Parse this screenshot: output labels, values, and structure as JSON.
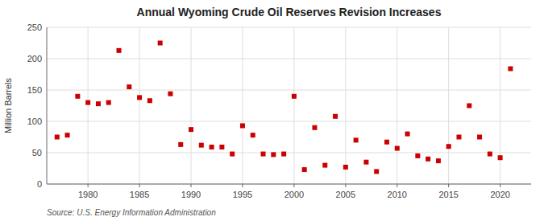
{
  "chart_data": {
    "type": "scatter",
    "title": "Annual Wyoming Crude Oil Reserves Revision Increases",
    "ylabel": "Million Barrels",
    "source": "Source: U.S. Energy Information Administration",
    "color": "#cc0000",
    "marker": "square",
    "grid": true,
    "x": [
      1977,
      1978,
      1979,
      1980,
      1981,
      1982,
      1983,
      1984,
      1985,
      1986,
      1987,
      1988,
      1989,
      1990,
      1991,
      1992,
      1993,
      1994,
      1995,
      1996,
      1997,
      1998,
      1999,
      2000,
      2001,
      2002,
      2003,
      2004,
      2005,
      2006,
      2007,
      2008,
      2009,
      2010,
      2011,
      2012,
      2013,
      2014,
      2015,
      2016,
      2017,
      2018,
      2019,
      2020,
      2021
    ],
    "values": [
      75,
      78,
      140,
      130,
      128,
      130,
      213,
      155,
      138,
      133,
      225,
      144,
      63,
      87,
      62,
      59,
      59,
      48,
      93,
      78,
      48,
      47,
      48,
      140,
      23,
      90,
      30,
      108,
      27,
      70,
      35,
      20,
      67,
      57,
      80,
      45,
      40,
      37,
      60,
      75,
      125,
      75,
      48,
      42,
      184
    ],
    "xlim": [
      1976,
      2023
    ],
    "ylim": [
      0,
      250
    ],
    "xticks": [
      1980,
      1985,
      1990,
      1995,
      2000,
      2005,
      2010,
      2015,
      2020
    ],
    "yticks": [
      0,
      50,
      100,
      150,
      200,
      250
    ]
  }
}
